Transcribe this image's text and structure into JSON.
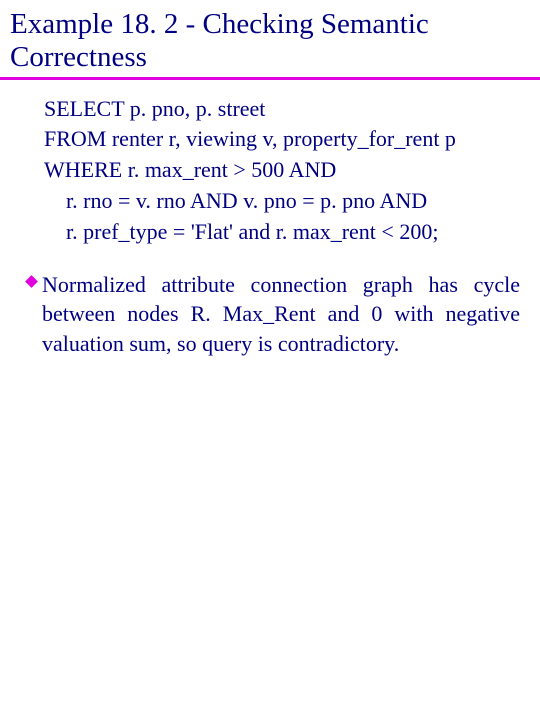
{
  "title": {
    "line1": "Example 18. 2 - Checking Semantic",
    "line2": "Correctness"
  },
  "query": {
    "line1": "SELECT p. pno, p. street",
    "line2": "FROM renter r, viewing v, property_for_rent p",
    "line3": "WHERE r. max_rent > 500 AND",
    "line4": "r. rno = v. rno AND v. pno = p. pno AND",
    "line5": "r. pref_type = 'Flat' and r. max_rent < 200;"
  },
  "bullet": {
    "text": "Normalized attribute connection graph has cycle between nodes R. Max_Rent and 0 with negative valuation sum, so query is contradictory."
  },
  "colors": {
    "text": "#000080",
    "accent": "#e000e0",
    "background": "#ffffff"
  }
}
